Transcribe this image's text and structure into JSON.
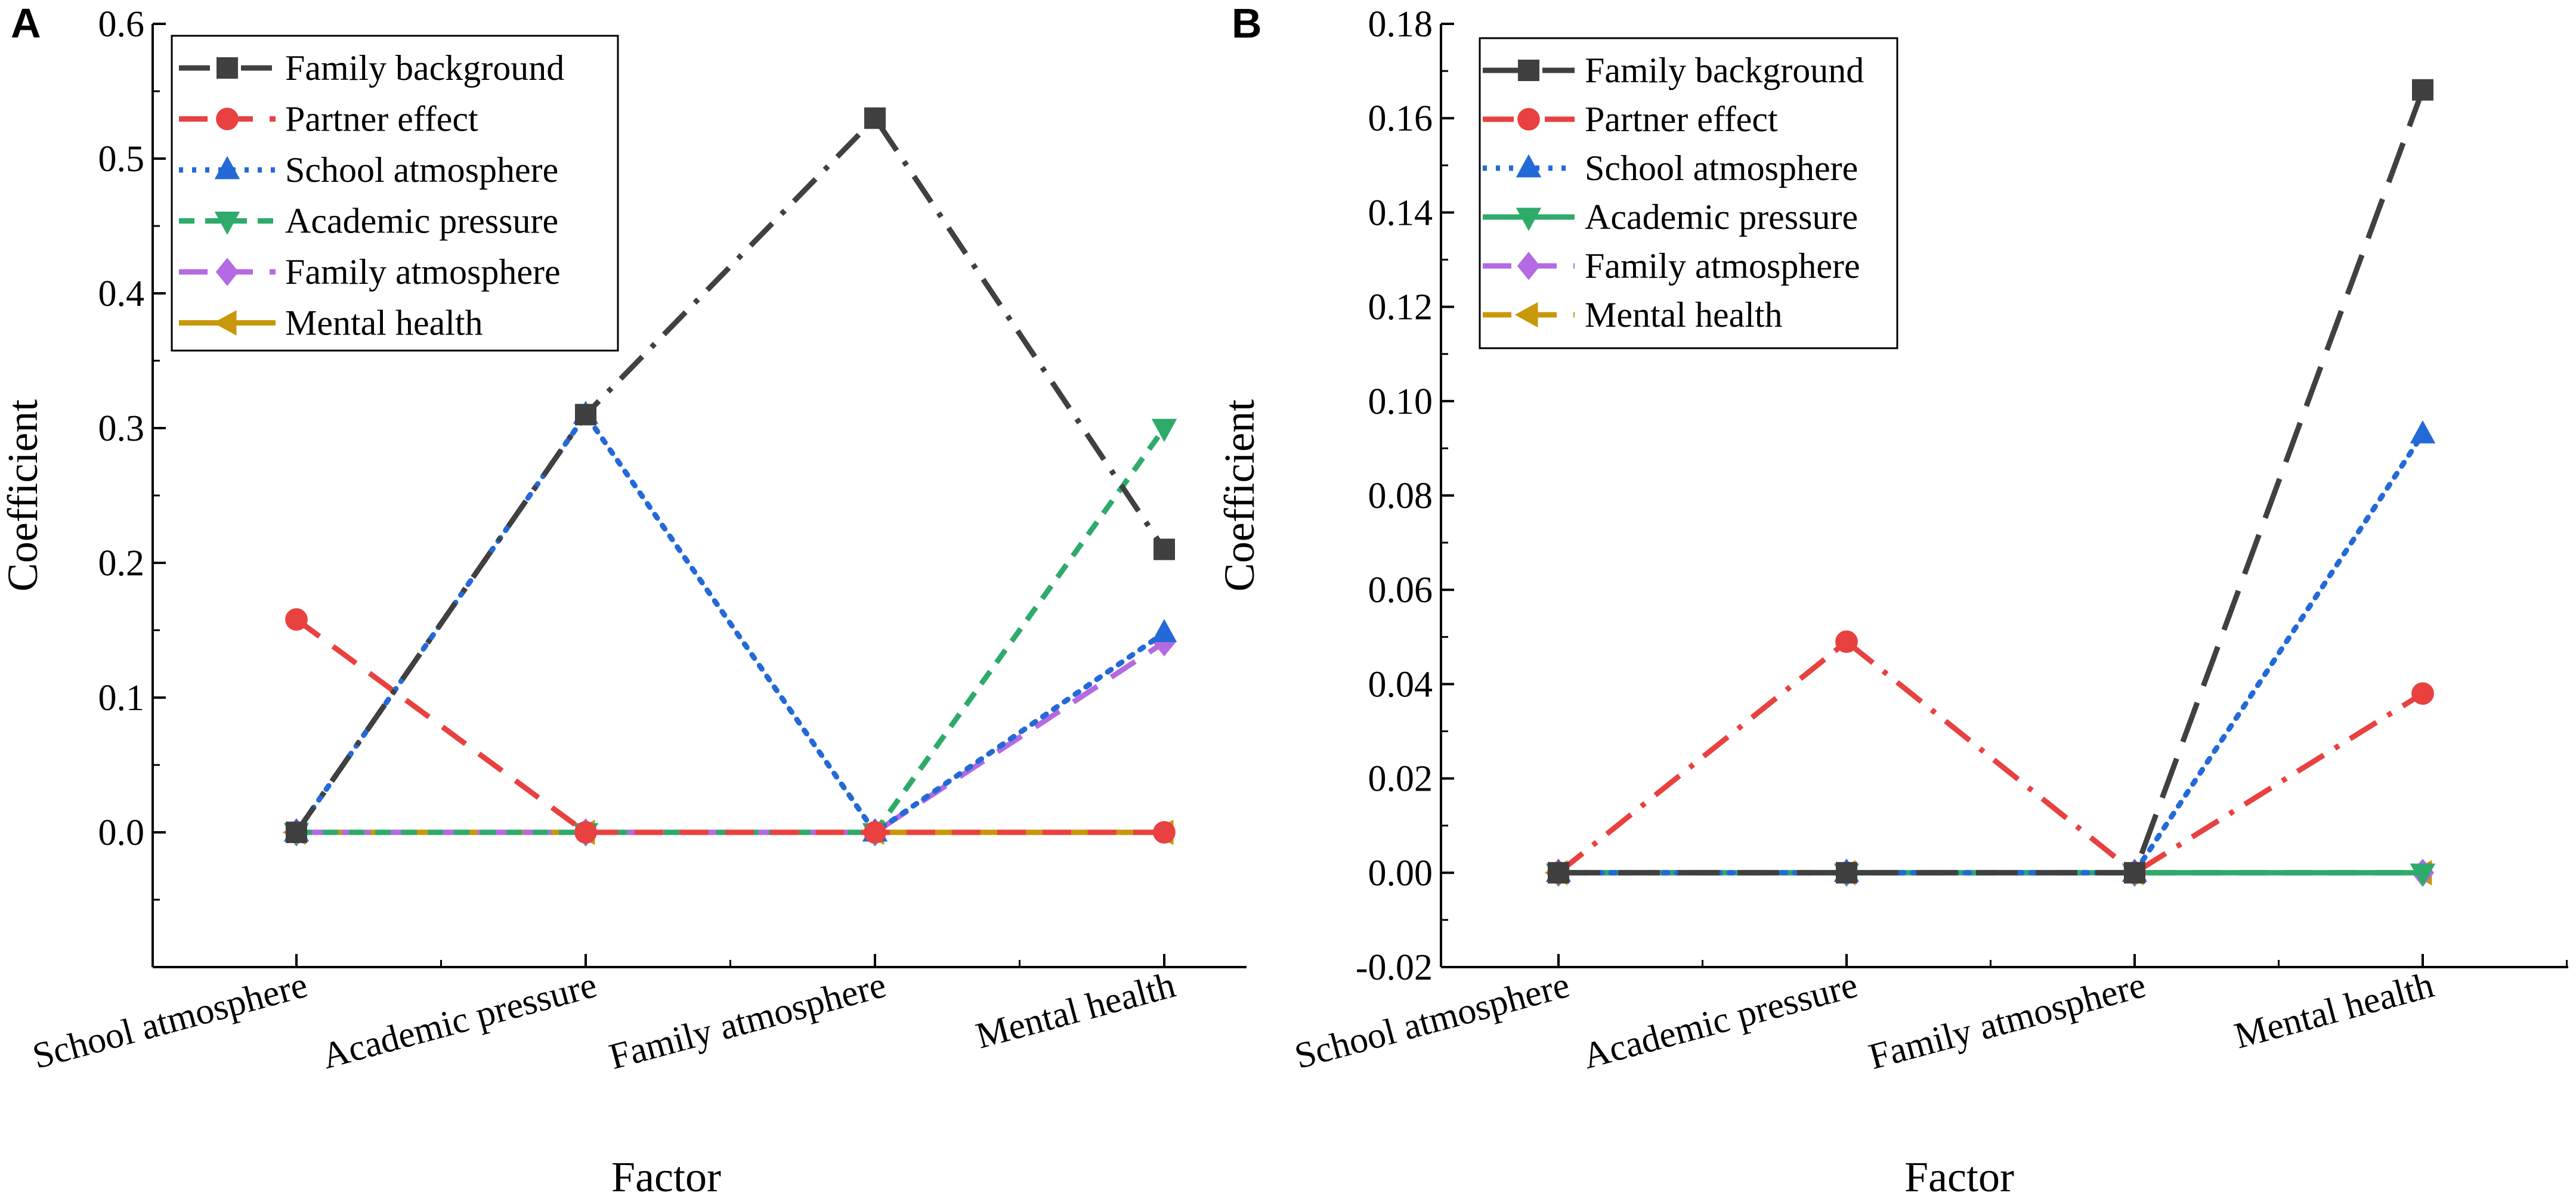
{
  "chart_data": [
    {
      "type": "line",
      "panel_label": "A",
      "xlabel": "Factor",
      "ylabel": "Coefficient",
      "categories": [
        "School atmosphere",
        "Academic pressure",
        "Family atmosphere",
        "Mental health"
      ],
      "ylim": [
        -0.1,
        0.6
      ],
      "yticks": [
        0.0,
        0.1,
        0.2,
        0.3,
        0.4,
        0.5,
        0.6
      ],
      "ytick_labels": [
        "0.0",
        "0.1",
        "0.2",
        "0.3",
        "0.4",
        "0.5",
        "0.6"
      ],
      "legend_position": "top-left",
      "series": [
        {
          "name": "Family background",
          "values": [
            0,
            0.31,
            0.53,
            0.21
          ],
          "color": "#404040",
          "marker": "square",
          "dash": "dashdot"
        },
        {
          "name": "Partner effect",
          "values": [
            0.158,
            0,
            0,
            0
          ],
          "color": "#e8413f",
          "marker": "circle",
          "dash": "dash"
        },
        {
          "name": "School atmosphere",
          "values": [
            0,
            0.31,
            0,
            0.148
          ],
          "color": "#2369d8",
          "marker": "triangle-up",
          "dash": "dot"
        },
        {
          "name": "Academic pressure",
          "values": [
            0,
            0,
            0,
            0.3
          ],
          "color": "#2eaa6a",
          "marker": "triangle-down",
          "dash": "shortdash"
        },
        {
          "name": "Family atmosphere",
          "values": [
            0,
            0,
            0,
            0.141
          ],
          "color": "#b36ae2",
          "marker": "diamond",
          "dash": "dash"
        },
        {
          "name": "Mental health",
          "values": [
            0,
            0,
            0,
            0
          ],
          "color": "#c9970a",
          "marker": "triangle-left",
          "dash": "solid"
        }
      ]
    },
    {
      "type": "line",
      "panel_label": "B",
      "xlabel": "Factor",
      "ylabel": "Coefficient",
      "categories": [
        "School atmosphere",
        "Academic pressure",
        "Family atmosphere",
        "Mental health"
      ],
      "ylim": [
        -0.02,
        0.18
      ],
      "yticks": [
        -0.02,
        0.0,
        0.02,
        0.04,
        0.06,
        0.08,
        0.1,
        0.12,
        0.14,
        0.16,
        0.18
      ],
      "ytick_labels": [
        "-0.02",
        "0.00",
        "0.02",
        "0.04",
        "0.06",
        "0.08",
        "0.10",
        "0.12",
        "0.14",
        "0.16",
        "0.18"
      ],
      "legend_position": "top-left",
      "series": [
        {
          "name": "Family background",
          "values": [
            0,
            0,
            0,
            0.166
          ],
          "color": "#404040",
          "marker": "square",
          "dash": "longdash"
        },
        {
          "name": "Partner effect",
          "values": [
            0,
            0.049,
            0,
            0.038
          ],
          "color": "#e8413f",
          "marker": "circle",
          "dash": "dashdot"
        },
        {
          "name": "School atmosphere",
          "values": [
            0,
            0,
            0,
            0.093
          ],
          "color": "#2369d8",
          "marker": "triangle-up",
          "dash": "dot"
        },
        {
          "name": "Academic pressure",
          "values": [
            0,
            0,
            0,
            0
          ],
          "color": "#2eaa6a",
          "marker": "triangle-down",
          "dash": "solid"
        },
        {
          "name": "Family atmosphere",
          "values": [
            0,
            0,
            0,
            0
          ],
          "color": "#b36ae2",
          "marker": "diamond",
          "dash": "dash"
        },
        {
          "name": "Mental health",
          "values": [
            0,
            0,
            0,
            0
          ],
          "color": "#c9970a",
          "marker": "triangle-left",
          "dash": "dash"
        }
      ]
    }
  ]
}
